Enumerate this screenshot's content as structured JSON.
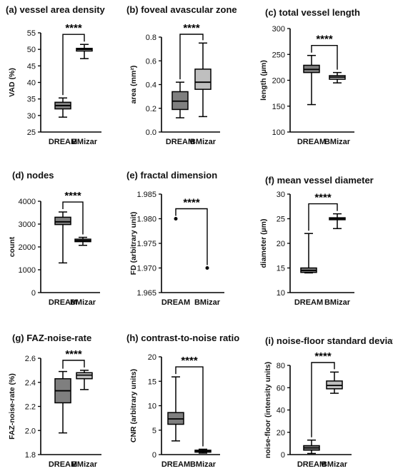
{
  "chart_data": [
    {
      "type": "boxplot",
      "title": "(a) vessel area density",
      "ylabel": "VAD (%)",
      "xlabel": "",
      "categories": [
        "DREAM",
        "BMizar"
      ],
      "ylim": [
        25,
        55
      ],
      "yticks": [
        25,
        30,
        35,
        40,
        45,
        50,
        55
      ],
      "boxes": [
        {
          "category": "DREAM",
          "min": 29.5,
          "q1": 32.0,
          "median": 33.0,
          "q3": 34.0,
          "max": 35.3,
          "fill": "#7f7f7f"
        },
        {
          "category": "BMizar",
          "min": 47.2,
          "q1": 49.5,
          "median": 50.0,
          "q3": 50.3,
          "max": 51.5,
          "fill": "#bfbfbf"
        }
      ],
      "significance": "****"
    },
    {
      "type": "boxplot",
      "title": "(b) foveal avascular zone",
      "ylabel": "area (mm²)",
      "xlabel": "",
      "categories": [
        "DREAM",
        "BMizar"
      ],
      "ylim": [
        0.0,
        0.8
      ],
      "yticks": [
        0.0,
        0.2,
        0.4,
        0.6,
        0.8
      ],
      "boxes": [
        {
          "category": "DREAM",
          "min": 0.12,
          "q1": 0.19,
          "median": 0.26,
          "q3": 0.34,
          "max": 0.42,
          "fill": "#7f7f7f"
        },
        {
          "category": "BMizar",
          "min": 0.13,
          "q1": 0.36,
          "median": 0.42,
          "q3": 0.53,
          "max": 0.75,
          "fill": "#bfbfbf"
        }
      ],
      "significance": "****"
    },
    {
      "type": "boxplot",
      "title": "(c) total vessel length",
      "ylabel": "length (µm)",
      "xlabel": "",
      "categories": [
        "DREAM",
        "BMizar"
      ],
      "ylim": [
        100,
        300
      ],
      "yticks": [
        100,
        150,
        200,
        250,
        300
      ],
      "boxes": [
        {
          "category": "DREAM",
          "min": 153,
          "q1": 215,
          "median": 221,
          "q3": 229,
          "max": 248,
          "fill": "#7f7f7f"
        },
        {
          "category": "BMizar",
          "min": 195,
          "q1": 202,
          "median": 206,
          "q3": 209,
          "max": 215,
          "fill": "#bfbfbf"
        }
      ],
      "significance": "****"
    },
    {
      "type": "boxplot",
      "title": "(d) nodes",
      "ylabel": "count",
      "xlabel": "",
      "categories": [
        "DREAM",
        "BMizar"
      ],
      "ylim": [
        0,
        4000
      ],
      "yticks": [
        0,
        1000,
        2000,
        3000,
        4000
      ],
      "boxes": [
        {
          "category": "DREAM",
          "min": 1300,
          "q1": 2980,
          "median": 3100,
          "q3": 3300,
          "max": 3530,
          "fill": "#7f7f7f"
        },
        {
          "category": "BMizar",
          "min": 2070,
          "q1": 2230,
          "median": 2280,
          "q3": 2340,
          "max": 2420,
          "fill": "#bfbfbf"
        }
      ],
      "significance": "****"
    },
    {
      "type": "scatter",
      "title": "(e) fractal dimension",
      "ylabel": "FD (arbitrary unit)",
      "xlabel": "",
      "categories": [
        "DREAM",
        "BMizar"
      ],
      "ylim": [
        1.965,
        1.985
      ],
      "yticks": [
        1.965,
        1.97,
        1.975,
        1.98,
        1.985
      ],
      "points": [
        {
          "category": "DREAM",
          "y": 1.98
        },
        {
          "category": "BMizar",
          "y": 1.97
        }
      ],
      "significance": "****"
    },
    {
      "type": "boxplot",
      "title": "(f) mean vessel diameter",
      "ylabel": "diameter (µm)",
      "xlabel": "",
      "categories": [
        "DREAM",
        "BMizar"
      ],
      "ylim": [
        10,
        30
      ],
      "yticks": [
        10,
        15,
        20,
        25,
        30
      ],
      "boxes": [
        {
          "category": "DREAM",
          "min": 14.0,
          "q1": 14.1,
          "median": 14.5,
          "q3": 15.0,
          "max": 22.0,
          "fill": "#7f7f7f"
        },
        {
          "category": "BMizar",
          "min": 23.0,
          "q1": 24.8,
          "median": 25.0,
          "q3": 25.2,
          "max": 26.0,
          "fill": "#bfbfbf"
        }
      ],
      "significance": "****"
    },
    {
      "type": "boxplot",
      "title": "(g) FAZ-noise-rate",
      "ylabel": "FAZ-noise-rate (%)",
      "xlabel": "",
      "categories": [
        "DREAM",
        "BMizar"
      ],
      "ylim": [
        1.8,
        2.6
      ],
      "yticks": [
        1.8,
        2.0,
        2.2,
        2.4,
        2.6
      ],
      "boxes": [
        {
          "category": "DREAM",
          "min": 1.98,
          "q1": 2.23,
          "median": 2.33,
          "q3": 2.43,
          "max": 2.49,
          "fill": "#7f7f7f"
        },
        {
          "category": "BMizar",
          "min": 2.34,
          "q1": 2.43,
          "median": 2.46,
          "q3": 2.48,
          "max": 2.5,
          "fill": "#bfbfbf"
        }
      ],
      "significance": "****"
    },
    {
      "type": "boxplot",
      "title": "(h) contrast-to-noise ratio",
      "ylabel": "CNR (arbitrary units)",
      "xlabel": "",
      "categories": [
        "DREAM",
        "BMizar"
      ],
      "ylim": [
        0,
        20
      ],
      "yticks": [
        0,
        5,
        10,
        15,
        20
      ],
      "boxes": [
        {
          "category": "DREAM",
          "min": 2.8,
          "q1": 6.2,
          "median": 7.3,
          "q3": 8.6,
          "max": 15.9,
          "fill": "#7f7f7f"
        },
        {
          "category": "BMizar",
          "min": 0.3,
          "q1": 0.5,
          "median": 0.7,
          "q3": 0.9,
          "max": 1.1,
          "fill": "#bfbfbf"
        }
      ],
      "significance": "****"
    },
    {
      "type": "boxplot",
      "title": "(i) noise-floor standard deviation",
      "ylabel": "noise-floor (intensity units)",
      "xlabel": "",
      "categories": [
        "DREAM",
        "BMizar"
      ],
      "ylim": [
        0,
        80
      ],
      "yticks": [
        0,
        20,
        40,
        60,
        80
      ],
      "boxes": [
        {
          "category": "DREAM",
          "min": 1,
          "q1": 4,
          "median": 6,
          "q3": 8,
          "max": 13,
          "fill": "#7f7f7f"
        },
        {
          "category": "BMizar",
          "min": 55,
          "q1": 59,
          "median": 62,
          "q3": 66,
          "max": 74,
          "fill": "#bfbfbf"
        }
      ],
      "significance": "****"
    }
  ]
}
